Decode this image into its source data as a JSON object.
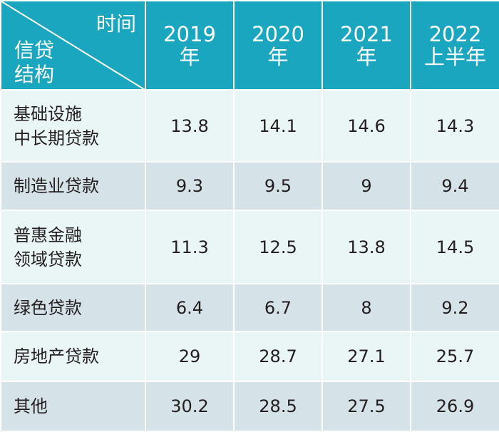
{
  "header": {
    "corner_top": "时间",
    "corner_bottom_line1": "信贷",
    "corner_bottom_line2": "结构",
    "columns": [
      {
        "line1": "2019",
        "line2": "年"
      },
      {
        "line1": "2020",
        "line2": "年"
      },
      {
        "line1": "2021",
        "line2": "年"
      },
      {
        "line1": "2022",
        "line2": "上半年"
      }
    ]
  },
  "rows": [
    {
      "label_line1": "基础设施",
      "label_line2": "中长期贷款",
      "values": [
        "13.8",
        "14.1",
        "14.6",
        "14.3"
      ]
    },
    {
      "label_line1": "制造业贷款",
      "label_line2": "",
      "values": [
        "9.3",
        "9.5",
        "9",
        "9.4"
      ]
    },
    {
      "label_line1": "普惠金融",
      "label_line2": "领域贷款",
      "values": [
        "11.3",
        "12.5",
        "13.8",
        "14.5"
      ]
    },
    {
      "label_line1": "绿色贷款",
      "label_line2": "",
      "values": [
        "6.4",
        "6.7",
        "8",
        "9.2"
      ]
    },
    {
      "label_line1": "房地产贷款",
      "label_line2": "",
      "values": [
        "29",
        "28.7",
        "27.1",
        "25.7"
      ]
    },
    {
      "label_line1": "其他",
      "label_line2": "",
      "values": [
        "30.2",
        "28.5",
        "27.5",
        "26.9"
      ]
    }
  ],
  "colors": {
    "header_bg": "#1ba6c0",
    "row_light": "#eaf5f6",
    "row_dark": "#d5e2e7",
    "text": "#231f20"
  }
}
